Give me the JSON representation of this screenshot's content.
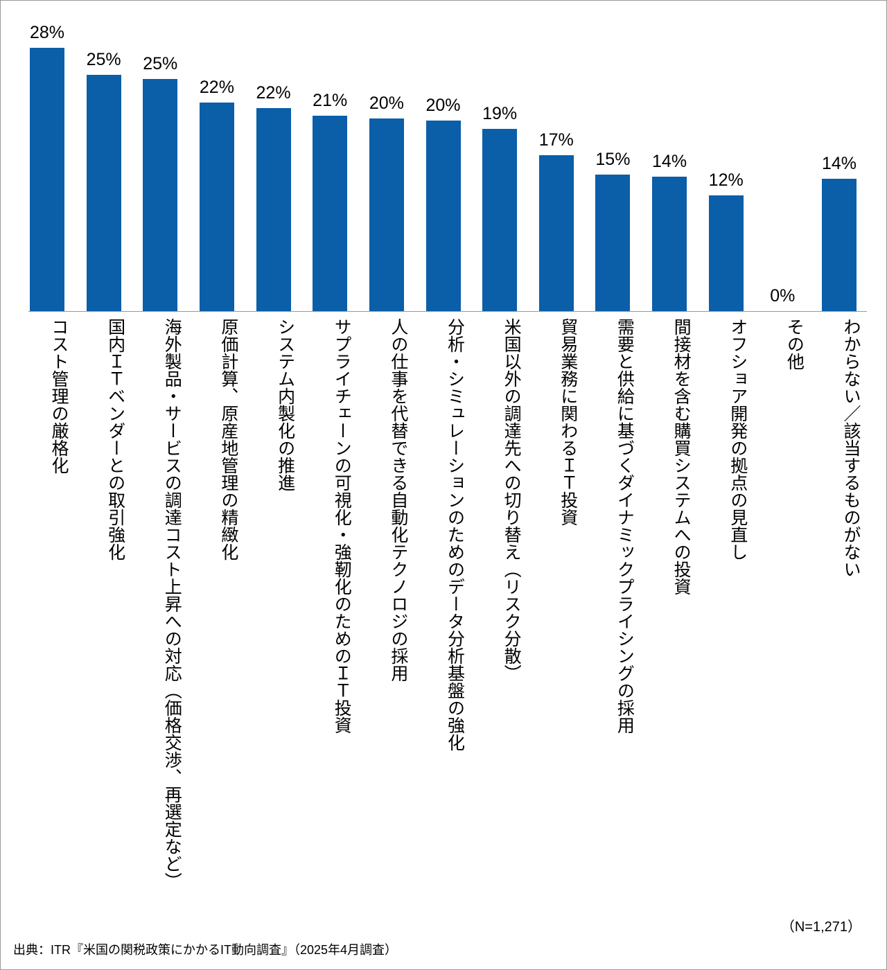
{
  "chart_data": {
    "type": "bar",
    "categories": [
      "コスト管理の厳格化",
      "国内ＩＴベンダーとの取引強化",
      "海外製品・サービスの調達コスト上昇への対応（価格交渉、再選定など）",
      "原価計算、原産地管理の精緻化",
      "システム内製化の推進",
      "サプライチェーンの可視化・強靭化のためのＩＴ投資",
      "人の仕事を代替できる自動化テクノロジの採用",
      "分析・シミュレーションのためのデータ分析基盤の強化",
      "米国以外の調達先への切り替え（リスク分散）",
      "貿易業務に関わるＩＴ投資",
      "需要と供給に基づくダイナミックプライシングの採用",
      "間接材を含む購買システムへの投資",
      "オフショア開発の拠点の見直し",
      "その他",
      "わからない／該当するものがない"
    ],
    "values": [
      28,
      25.1,
      24.7,
      22.2,
      21.6,
      20.8,
      20.5,
      20.3,
      19.4,
      16.6,
      14.5,
      14.3,
      12.3,
      0,
      14.1
    ],
    "value_labels": [
      "28%",
      "25%",
      "25%",
      "22%",
      "22%",
      "21%",
      "20%",
      "20%",
      "19%",
      "17%",
      "15%",
      "14%",
      "12%",
      "0%",
      "14%"
    ],
    "color": "#0b5ea8",
    "note": "（N=1,271）",
    "source": "出典：ITR『米国の関税政策にかかるIT動向調査』（2025年4月調査）"
  }
}
